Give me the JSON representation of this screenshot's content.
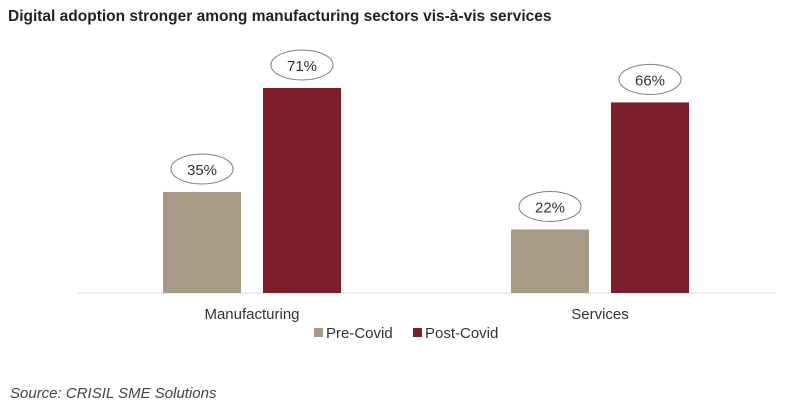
{
  "chart_data": {
    "type": "bar",
    "title": "Digital adoption stronger among manufacturing sectors vis-à-vis services",
    "categories": [
      "Manufacturing",
      "Services"
    ],
    "series": [
      {
        "name": "Pre-Covid",
        "values": [
          35,
          22
        ],
        "color": "#A89A87"
      },
      {
        "name": "Post-Covid",
        "values": [
          71,
          66
        ],
        "color": "#7B1E2A"
      }
    ],
    "data_labels": [
      [
        "35%",
        "22%"
      ],
      [
        "71%",
        "66%"
      ]
    ],
    "xlabel": "",
    "ylabel": "",
    "ylim": [
      0,
      100
    ],
    "grid": false,
    "legend": "bottom",
    "source": "Source: CRISIL SME Solutions"
  }
}
